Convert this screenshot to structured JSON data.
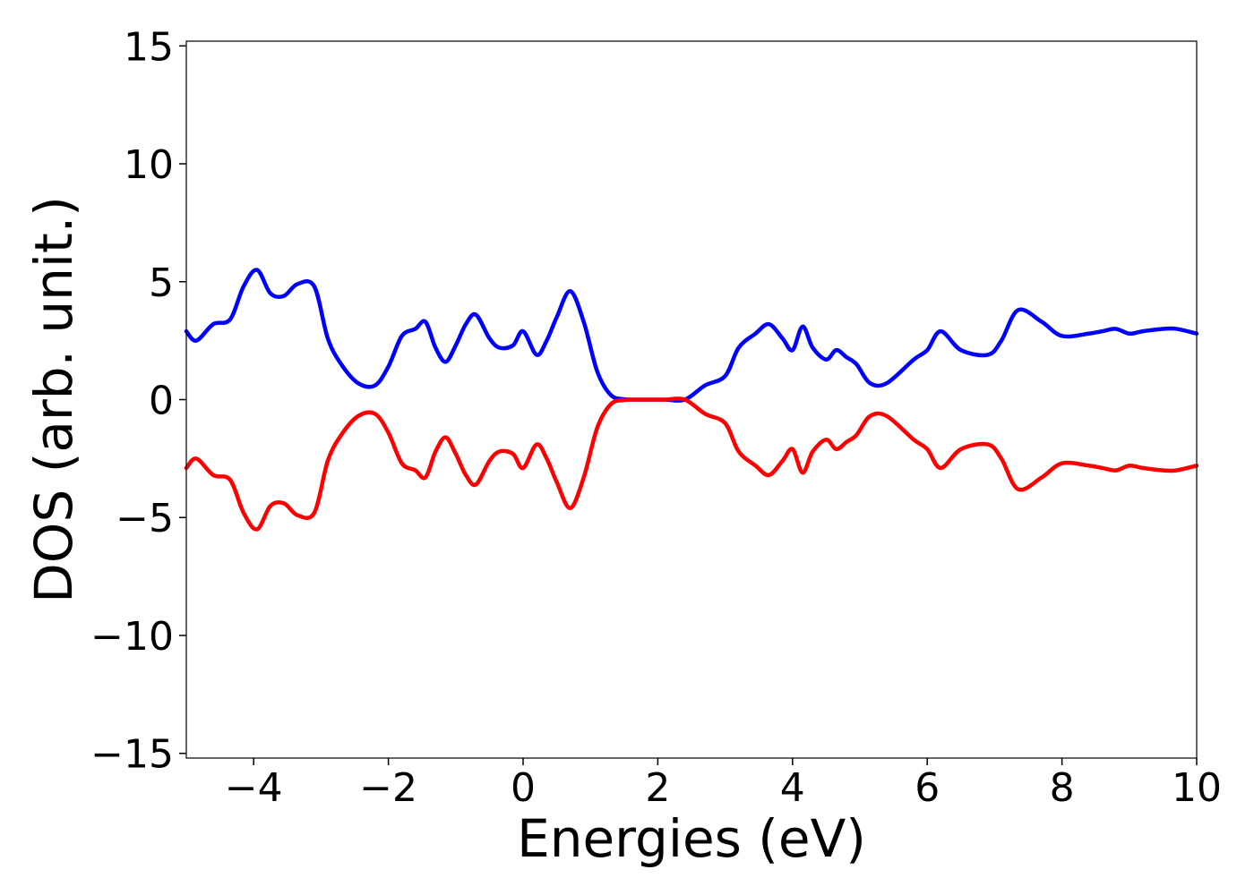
{
  "chart_data": {
    "type": "line",
    "title": "",
    "xlabel": "Energies (eV)",
    "ylabel": "DOS (arb. unit.)",
    "xlim": [
      -5,
      10
    ],
    "ylim": [
      -15.2,
      15.2
    ],
    "x_ticks": [
      -4,
      -2,
      0,
      2,
      4,
      6,
      8,
      10
    ],
    "x_tick_labels": [
      "−4",
      "−2",
      "0",
      "2",
      "4",
      "6",
      "8",
      "10"
    ],
    "y_ticks": [
      15,
      10,
      5,
      0,
      -5,
      -10,
      -15
    ],
    "y_tick_labels": [
      "15",
      "10",
      "5",
      "0",
      "−5",
      "−10",
      "−15"
    ],
    "grid": false,
    "legend": "none",
    "series": [
      {
        "color": "#0000ff",
        "x": [
          -5.0,
          -4.85,
          -4.6,
          -4.35,
          -4.15,
          -3.95,
          -3.75,
          -3.55,
          -3.35,
          -3.1,
          -2.9,
          -2.7,
          -2.45,
          -2.2,
          -2.0,
          -1.8,
          -1.6,
          -1.45,
          -1.3,
          -1.15,
          -1.0,
          -0.85,
          -0.7,
          -0.5,
          -0.35,
          -0.15,
          0.0,
          0.2,
          0.35,
          0.5,
          0.7,
          0.9,
          1.1,
          1.3,
          1.5,
          1.7,
          1.9,
          2.1,
          2.4,
          2.7,
          3.0,
          3.2,
          3.45,
          3.65,
          3.85,
          4.0,
          4.15,
          4.3,
          4.5,
          4.65,
          4.8,
          4.95,
          5.15,
          5.4,
          5.8,
          6.0,
          6.2,
          6.5,
          6.9,
          7.1,
          7.35,
          7.7,
          8.0,
          8.4,
          8.6,
          8.8,
          9.0,
          9.2,
          9.5,
          9.7,
          10.0
        ],
        "y": [
          2.9,
          2.5,
          3.2,
          3.4,
          4.8,
          5.5,
          4.5,
          4.4,
          4.9,
          4.8,
          2.6,
          1.5,
          0.7,
          0.6,
          1.4,
          2.7,
          3.0,
          3.3,
          2.2,
          1.6,
          2.3,
          3.2,
          3.6,
          2.6,
          2.2,
          2.3,
          2.9,
          1.9,
          2.5,
          3.5,
          4.6,
          3.3,
          1.2,
          0.2,
          0.02,
          0.0,
          0.0,
          0.0,
          0.0,
          0.6,
          1.0,
          2.2,
          2.8,
          3.2,
          2.6,
          2.1,
          3.1,
          2.2,
          1.7,
          2.1,
          1.8,
          1.5,
          0.7,
          0.7,
          1.7,
          2.1,
          2.9,
          2.1,
          1.9,
          2.5,
          3.8,
          3.3,
          2.7,
          2.8,
          2.9,
          3.0,
          2.8,
          2.9,
          3.0,
          3.0,
          2.8
        ]
      },
      {
        "color": "#ff0000",
        "x": [
          -5.0,
          -4.85,
          -4.6,
          -4.35,
          -4.15,
          -3.95,
          -3.75,
          -3.55,
          -3.35,
          -3.1,
          -2.9,
          -2.7,
          -2.45,
          -2.2,
          -2.0,
          -1.8,
          -1.6,
          -1.45,
          -1.3,
          -1.15,
          -1.0,
          -0.85,
          -0.7,
          -0.5,
          -0.35,
          -0.15,
          0.0,
          0.2,
          0.35,
          0.5,
          0.7,
          0.9,
          1.1,
          1.3,
          1.5,
          1.7,
          1.9,
          2.1,
          2.4,
          2.7,
          3.0,
          3.2,
          3.45,
          3.65,
          3.85,
          4.0,
          4.15,
          4.3,
          4.5,
          4.65,
          4.8,
          4.95,
          5.15,
          5.4,
          5.8,
          6.0,
          6.2,
          6.5,
          6.9,
          7.1,
          7.35,
          7.7,
          8.0,
          8.4,
          8.6,
          8.8,
          9.0,
          9.2,
          9.5,
          9.7,
          10.0
        ],
        "y": [
          -2.9,
          -2.5,
          -3.2,
          -3.4,
          -4.8,
          -5.5,
          -4.5,
          -4.4,
          -4.9,
          -4.8,
          -2.6,
          -1.5,
          -0.7,
          -0.6,
          -1.4,
          -2.7,
          -3.0,
          -3.3,
          -2.2,
          -1.6,
          -2.3,
          -3.2,
          -3.6,
          -2.6,
          -2.2,
          -2.3,
          -2.9,
          -1.9,
          -2.5,
          -3.5,
          -4.6,
          -3.3,
          -1.2,
          -0.2,
          -0.02,
          0.0,
          0.0,
          0.0,
          0.0,
          -0.6,
          -1.0,
          -2.2,
          -2.8,
          -3.2,
          -2.6,
          -2.1,
          -3.1,
          -2.2,
          -1.7,
          -2.1,
          -1.8,
          -1.5,
          -0.7,
          -0.7,
          -1.7,
          -2.1,
          -2.9,
          -2.1,
          -1.9,
          -2.5,
          -3.8,
          -3.3,
          -2.7,
          -2.8,
          -2.9,
          -3.0,
          -2.8,
          -2.9,
          -3.0,
          -3.0,
          -2.8
        ]
      }
    ]
  }
}
